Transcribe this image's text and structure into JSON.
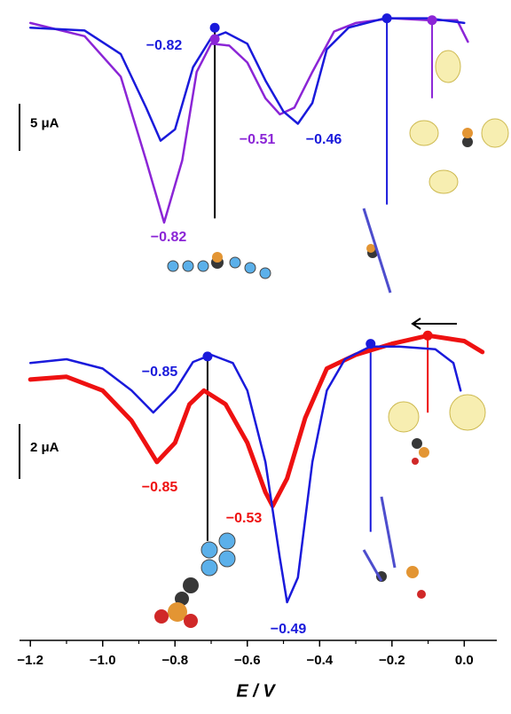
{
  "chart_data": {
    "type": "line",
    "x_label": "E / V",
    "xlim": [
      -1.23,
      0.09
    ],
    "xticks": [
      {
        "value": -1.2,
        "label": "−1.2"
      },
      {
        "value": -1.0,
        "label": "−1.0"
      },
      {
        "value": -0.8,
        "label": "−0.8"
      },
      {
        "value": -0.6,
        "label": "−0.6"
      },
      {
        "value": -0.4,
        "label": "−0.4"
      },
      {
        "value": -0.2,
        "label": "−0.2"
      },
      {
        "value": 0.0,
        "label": "0.0"
      }
    ],
    "minor_xticks": [
      -1.1,
      -0.9,
      -0.7,
      -0.5,
      -0.3,
      -0.1
    ],
    "panels": [
      {
        "ylim": [
          -23,
          1.5
        ],
        "scale_bar": {
          "value": 5,
          "label": "5 μA"
        },
        "series": [
          {
            "color": "#8b25d6",
            "x": [
              -1.2,
              -1.05,
              -0.95,
              -0.88,
              -0.83,
              -0.78,
              -0.74,
              -0.7,
              -0.65,
              -0.6,
              -0.55,
              -0.51,
              -0.47,
              -0.42,
              -0.36,
              -0.3,
              -0.2,
              -0.1,
              -0.02,
              0.01
            ],
            "values": [
              0,
              -1.4,
              -5.7,
              -14.6,
              -21.2,
              -14.6,
              -5.2,
              -2.2,
              -2.4,
              -4.2,
              -8,
              -9.7,
              -9,
              -5.2,
              -0.9,
              0,
              0.5,
              0.3,
              0.3,
              -2
            ]
          },
          {
            "color": "#1a1adb",
            "x": [
              -1.2,
              -1.05,
              -0.95,
              -0.88,
              -0.84,
              -0.8,
              -0.75,
              -0.7,
              -0.66,
              -0.6,
              -0.55,
              -0.5,
              -0.46,
              -0.42,
              -0.38,
              -0.32,
              -0.22,
              -0.1,
              0.0
            ],
            "values": [
              -0.5,
              -0.8,
              -3.3,
              -9,
              -12.5,
              -11.3,
              -4.7,
              -1.6,
              -1,
              -2.2,
              -6.1,
              -9.4,
              -10.7,
              -8.5,
              -2.8,
              -0.5,
              0.5,
              0.5,
              0
            ]
          }
        ],
        "markers": [
          {
            "x": -0.69,
            "y": -0.5,
            "color": "#1a1adb",
            "line_color": "#000000"
          },
          {
            "x": -0.69,
            "y": -1.7,
            "color": "#8b25d6",
            "line_color": "#000000"
          },
          {
            "x": -0.214,
            "y": 0.5,
            "color": "#1a1adb",
            "line_color": "#1a1adb"
          },
          {
            "x": -0.089,
            "y": 0.3,
            "color": "#8b25d6",
            "line_color": "#8b25d6"
          }
        ],
        "peak_labels": [
          {
            "value": -0.82,
            "label": "−0.82",
            "color": "#1a1adb"
          },
          {
            "value": -0.82,
            "label": "−0.82",
            "color": "#8b25d6"
          },
          {
            "value": -0.51,
            "label": "−0.51",
            "color": "#8b25d6"
          },
          {
            "value": -0.46,
            "label": "−0.46",
            "color": "#1a1adb"
          }
        ]
      },
      {
        "ylim": [
          -9.4,
          1
        ],
        "scale_bar": {
          "value": 2,
          "label": "2 μA"
        },
        "series": [
          {
            "color": "#ee1111",
            "width": 5,
            "x": [
              -1.2,
              -1.1,
              -1.0,
              -0.92,
              -0.85,
              -0.8,
              -0.76,
              -0.72,
              -0.66,
              -0.6,
              -0.55,
              -0.53,
              -0.49,
              -0.44,
              -0.38,
              -0.3,
              -0.2,
              -0.1,
              0.0,
              0.05
            ],
            "values": [
              -0.9,
              -0.8,
              -1.3,
              -2.4,
              -3.9,
              -3.2,
              -1.8,
              -1.3,
              -1.8,
              -3.2,
              -5,
              -5.5,
              -4.5,
              -2.3,
              -0.5,
              0,
              0.4,
              0.7,
              0.5,
              0.1
            ]
          },
          {
            "color": "#1a1adb",
            "width": 2.5,
            "x": [
              -1.2,
              -1.1,
              -1.0,
              -0.92,
              -0.86,
              -0.8,
              -0.75,
              -0.7,
              -0.64,
              -0.6,
              -0.55,
              -0.51,
              -0.49,
              -0.46,
              -0.42,
              -0.38,
              -0.33,
              -0.26,
              -0.18,
              -0.08,
              -0.03,
              -0.01
            ],
            "values": [
              -0.3,
              -0.16,
              -0.5,
              -1.3,
              -2.1,
              -1.3,
              -0.26,
              0,
              -0.3,
              -1.3,
              -3.9,
              -7.4,
              -9,
              -8.1,
              -3.9,
              -1.3,
              -0.16,
              0.3,
              0.3,
              0.2,
              -0.3,
              -1.3
            ]
          }
        ],
        "markers": [
          {
            "x": -0.71,
            "y": -0.06,
            "color": "#1a1adb",
            "line_color": "#000000"
          },
          {
            "x": -0.259,
            "y": 0.4,
            "color": "#1a1adb",
            "line_color": "#1a1adb"
          },
          {
            "x": -0.101,
            "y": 0.7,
            "color": "#ee1111",
            "line_color": "#ee1111"
          }
        ],
        "peak_labels": [
          {
            "value": -0.85,
            "label": "−0.85",
            "color": "#1a1adb"
          },
          {
            "value": -0.85,
            "label": "−0.85",
            "color": "#ee1111"
          },
          {
            "value": -0.53,
            "label": "−0.53",
            "color": "#ee1111"
          },
          {
            "value": -0.49,
            "label": "−0.49",
            "color": "#1a1adb"
          }
        ]
      }
    ]
  }
}
